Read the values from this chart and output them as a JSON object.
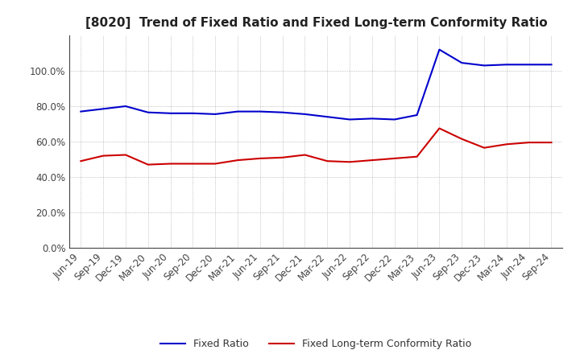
{
  "title": "[8020]  Trend of Fixed Ratio and Fixed Long-term Conformity Ratio",
  "x_labels": [
    "Jun-19",
    "Sep-19",
    "Dec-19",
    "Mar-20",
    "Jun-20",
    "Sep-20",
    "Dec-20",
    "Mar-21",
    "Jun-21",
    "Sep-21",
    "Dec-21",
    "Mar-22",
    "Jun-22",
    "Sep-22",
    "Dec-22",
    "Mar-23",
    "Jun-23",
    "Sep-23",
    "Dec-23",
    "Mar-24",
    "Jun-24",
    "Sep-24"
  ],
  "fixed_ratio": [
    77.0,
    78.5,
    80.0,
    76.5,
    76.0,
    76.0,
    75.5,
    77.0,
    77.0,
    76.5,
    75.5,
    74.0,
    72.5,
    73.0,
    72.5,
    75.0,
    112.0,
    104.5,
    103.0,
    103.5,
    103.5,
    103.5
  ],
  "fixed_longterm": [
    49.0,
    52.0,
    52.5,
    47.0,
    47.5,
    47.5,
    47.5,
    49.5,
    50.5,
    51.0,
    52.5,
    49.0,
    48.5,
    49.5,
    50.5,
    51.5,
    67.5,
    61.5,
    56.5,
    58.5,
    59.5,
    59.5
  ],
  "fixed_ratio_color": "#0000CC",
  "fixed_longterm_color": "#CC0000",
  "background_color": "#FFFFFF",
  "plot_bg_color": "#FFFFFF",
  "grid_color": "#999999",
  "ylim": [
    0,
    120
  ],
  "yticks": [
    0,
    20,
    40,
    60,
    80,
    100
  ],
  "legend_fixed": "Fixed Ratio",
  "legend_longterm": "Fixed Long-term Conformity Ratio",
  "title_fontsize": 11,
  "tick_fontsize": 8.5,
  "legend_fontsize": 9
}
